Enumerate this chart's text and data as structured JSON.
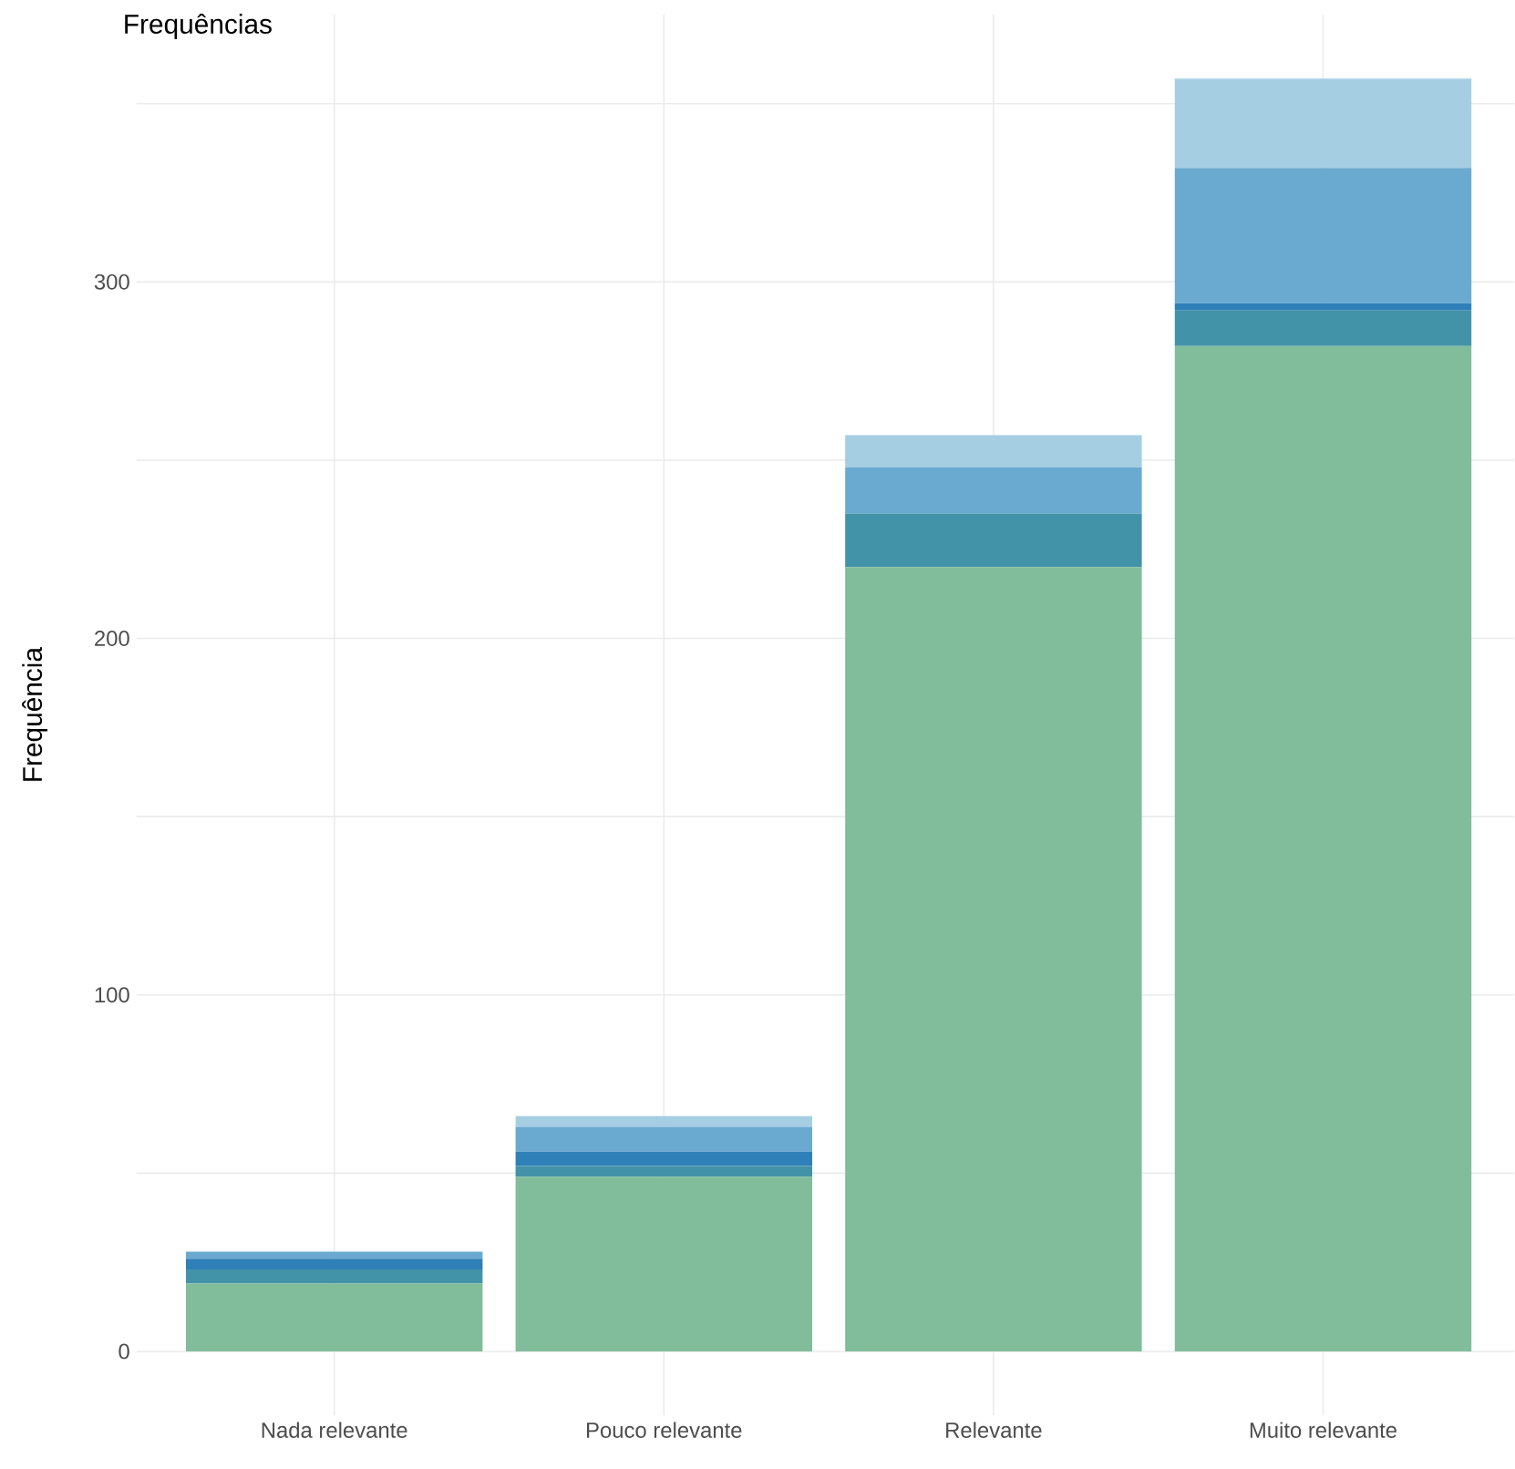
{
  "chart_data": {
    "type": "bar",
    "stacked": true,
    "title": "Frequências",
    "ylabel": "Frequência",
    "categories": [
      "Nada relevante",
      "Pouco relevante",
      "Relevante",
      "Muito relevante"
    ],
    "series": [
      {
        "color": "#81bd9a",
        "values": [
          19,
          49,
          220,
          282
        ]
      },
      {
        "color": "#4393a8",
        "values": [
          4,
          3,
          15,
          10
        ]
      },
      {
        "color": "#2f80b8",
        "values": [
          3,
          4,
          0,
          2
        ]
      },
      {
        "color": "#6aaad0",
        "values": [
          2,
          7,
          13,
          38
        ]
      },
      {
        "color": "#a6cee3",
        "values": [
          0,
          3,
          9,
          25
        ]
      }
    ],
    "ylim": [
      -18,
      375
    ],
    "yticks": [
      0,
      {
        "value": 50,
        "label": null
      },
      100,
      {
        "value": 150,
        "label": null
      },
      200,
      {
        "value": 250,
        "label": null
      },
      300,
      {
        "value": 350,
        "label": null
      }
    ],
    "grid": true
  }
}
